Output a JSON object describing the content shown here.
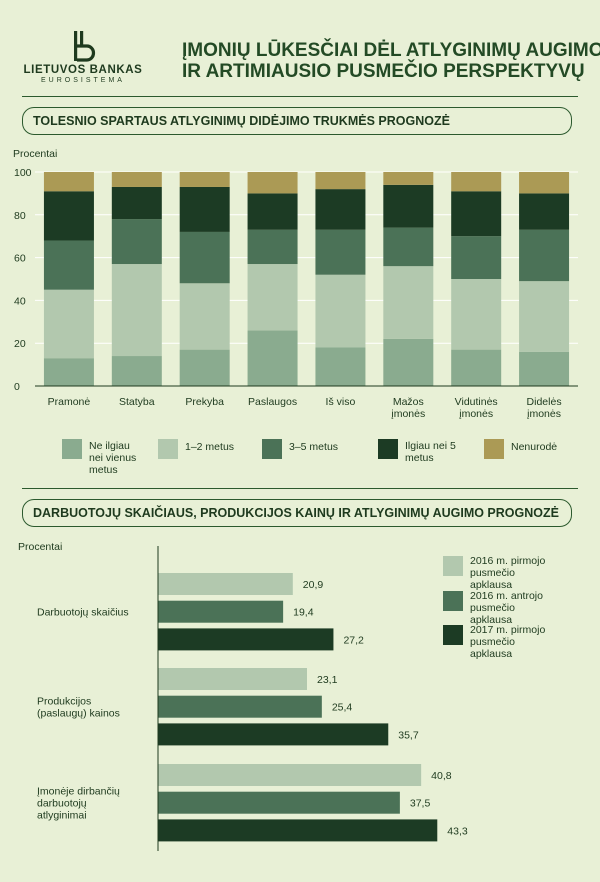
{
  "header": {
    "logo_name": "LIETUVOS BANKAS",
    "logo_sub": "EUROSISTEMA",
    "title_line1": "ĮMONIŲ LŪKESČIAI DĖL ATLYGINIMŲ AUGIMO",
    "title_line2": "IR ARTIMIAUSIO PUSMEČIO PERSPEKTYVŲ"
  },
  "colors": {
    "background": "#e8f0d6",
    "series": [
      "#8aab8f",
      "#b2c8ae",
      "#4b7257",
      "#1c3b24",
      "#ab9a55"
    ],
    "bars": [
      "#b2c8ae",
      "#4b7257",
      "#1c3b24"
    ]
  },
  "section1": {
    "title": "TOLESNIO SPARTAUS ATLYGINIMŲ DIDĖJIMO TRUKMĖS PROGNOZĖ"
  },
  "section2": {
    "title": "DARBUOTOJŲ SKAIČIAUS, PRODUKCIJOS KAINŲ IR ATLYGINIMŲ AUGIMO PROGNOZĖ"
  },
  "chart_data": [
    {
      "type": "bar",
      "stacked": true,
      "ylabel": "Procentai",
      "ylim": [
        0,
        100
      ],
      "yticks": [
        0,
        20,
        40,
        60,
        80,
        100
      ],
      "categories": [
        "Pramonė",
        "Statyba",
        "Prekyba",
        "Paslaugos",
        "Iš viso",
        "Mažos įmonės",
        "Vidutinės įmonės",
        "Didelės įmonės"
      ],
      "series": [
        {
          "name": "Ne ilgiau nei vienus metus",
          "values": [
            13,
            14,
            17,
            26,
            18,
            22,
            17,
            16
          ]
        },
        {
          "name": "1–2 metus",
          "values": [
            32,
            43,
            31,
            31,
            34,
            34,
            33,
            33
          ]
        },
        {
          "name": "3–5 metus",
          "values": [
            23,
            21,
            24,
            16,
            21,
            18,
            20,
            24
          ]
        },
        {
          "name": "Ilgiau nei 5 metus",
          "values": [
            23,
            15,
            21,
            17,
            19,
            20,
            21,
            17
          ]
        },
        {
          "name": "Nenurodė",
          "values": [
            9,
            7,
            7,
            10,
            8,
            6,
            9,
            10
          ]
        }
      ],
      "legend_position": "bottom"
    },
    {
      "type": "bar",
      "orientation": "horizontal",
      "ylabel": "Procentai",
      "categories": [
        "Darbuotojų skaičius",
        "Produkcijos (paslaugų) kainos",
        "Įmonėje dirbančių darbuotojų atlyginimai"
      ],
      "series": [
        {
          "name": "2016 m. pirmojo pusmečio apklausa",
          "values": [
            "20,9",
            "23,1",
            "40,8"
          ]
        },
        {
          "name": "2016 m. antrojo pusmečio apklausa",
          "values": [
            "19,4",
            "25,4",
            "37,5"
          ]
        },
        {
          "name": "2017 m. pirmojo pusmečio apklausa",
          "values": [
            "27,2",
            "35,7",
            "43,3"
          ]
        }
      ],
      "legend_position": "top-right"
    }
  ]
}
